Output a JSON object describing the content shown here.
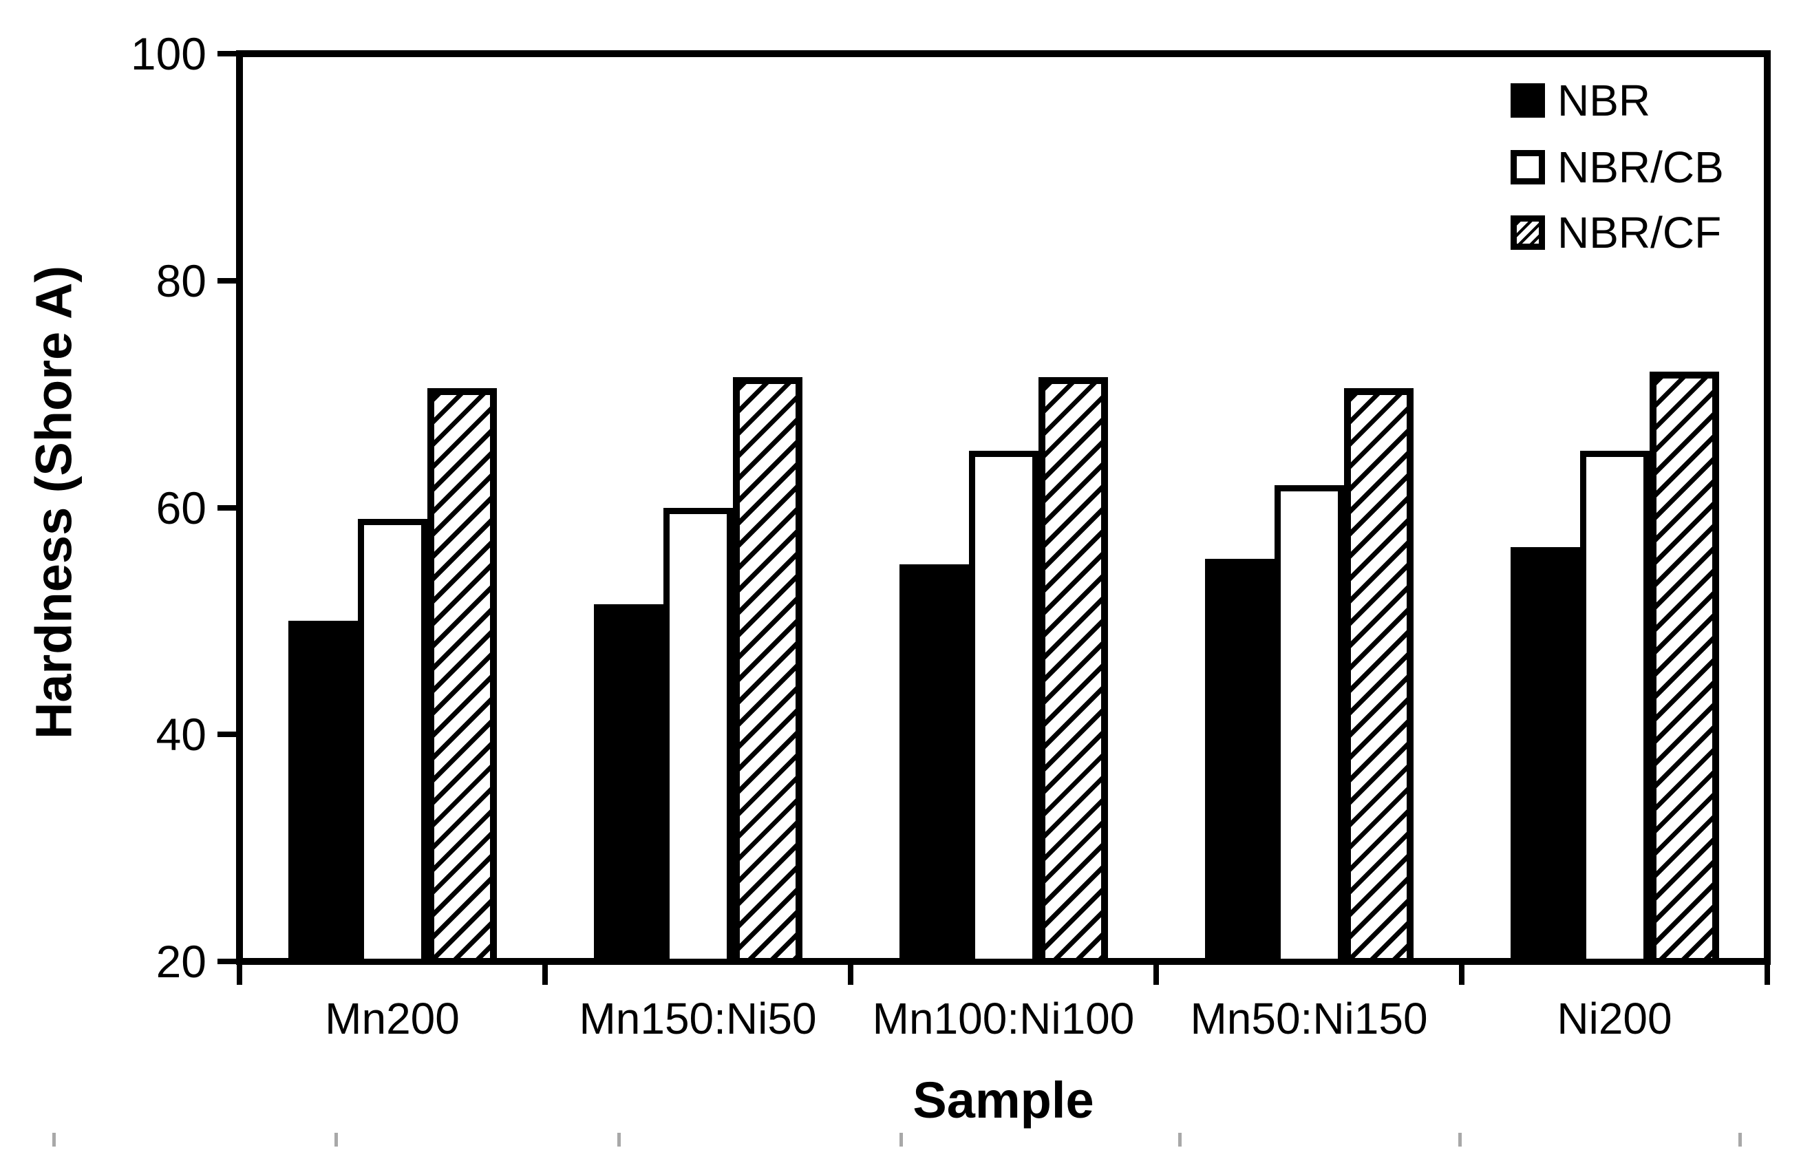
{
  "chart_data": {
    "type": "bar",
    "title": "",
    "xlabel": "Sample",
    "ylabel": "Hardness (Shore A)",
    "ylim": [
      20,
      100
    ],
    "yticks": [
      20,
      40,
      60,
      80,
      100
    ],
    "categories": [
      "Mn200",
      "Mn150:Ni50",
      "Mn100:Ni100",
      "Mn50:Ni150",
      "Ni200"
    ],
    "series": [
      {
        "name": "NBR",
        "fill": "solid-black",
        "values": [
          50,
          51.5,
          55,
          55.5,
          56.5
        ]
      },
      {
        "name": "NBR/CB",
        "fill": "white-outlined",
        "values": [
          59,
          60,
          65,
          62,
          65
        ]
      },
      {
        "name": "NBR/CF",
        "fill": "diagonal-hatch",
        "values": [
          70.5,
          71.5,
          71.5,
          70.5,
          72
        ]
      }
    ],
    "legend": {
      "position": "top-right-inside",
      "entries": [
        "NBR",
        "NBR/CB",
        "NBR/CF"
      ]
    },
    "grid": false,
    "colors": {
      "axis": "#000000",
      "bar_solid": "#000000",
      "bar_background": "#ffffff",
      "artifact_gray": "#a8a8a8"
    }
  },
  "artifacts": {
    "bottom_tick_x": [
      76,
      486,
      897,
      1307,
      1712,
      2119,
      2526
    ]
  }
}
